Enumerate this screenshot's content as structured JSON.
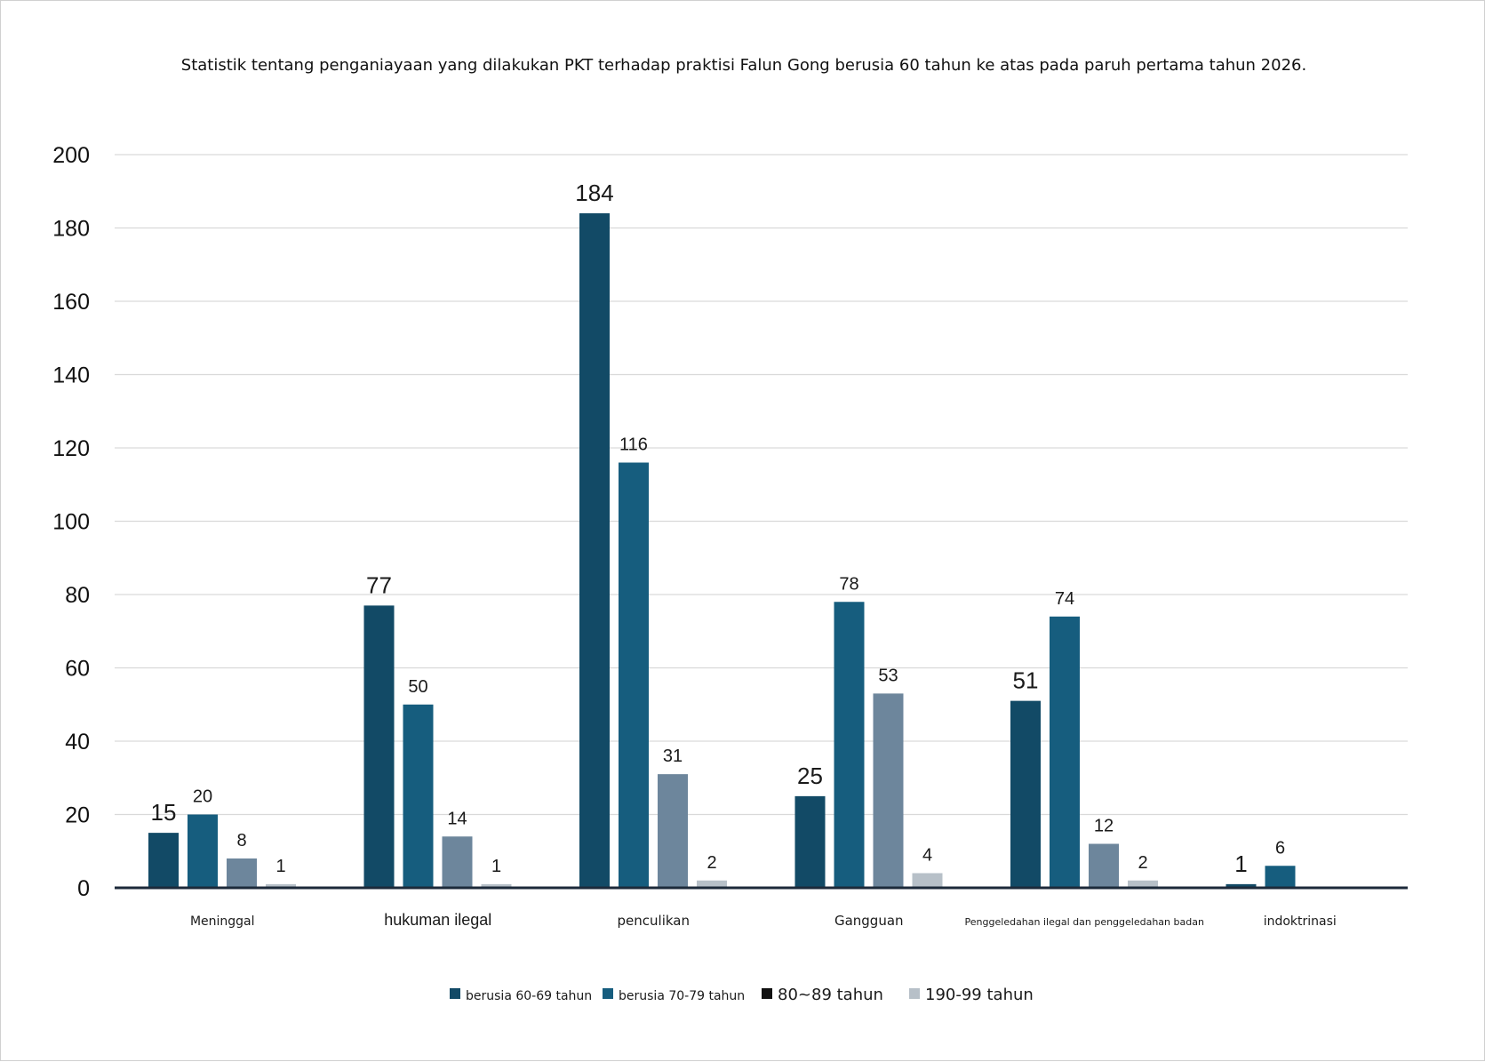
{
  "chart_data": {
    "type": "bar",
    "title": "Statistik tentang penganiayaan yang dilakukan PKT terhadap praktisi Falun Gong berusia 60 tahun ke atas pada paruh pertama tahun 2026.",
    "xlabel": "",
    "ylabel": "",
    "ylim": [
      0,
      200
    ],
    "yticks": [
      0,
      20,
      40,
      60,
      80,
      100,
      120,
      140,
      160,
      180,
      200
    ],
    "grid": true,
    "legend_position": "bottom",
    "categories": [
      "Meninggal",
      "hukuman ilegal",
      "penculikan",
      "Gangguan",
      "Penggeledahan ilegal dan penggeledahan badan",
      "indoktrinasi"
    ],
    "series": [
      {
        "name": "berusia 60-69 tahun",
        "color": "#124a66",
        "values": [
          15,
          77,
          184,
          25,
          51,
          1
        ]
      },
      {
        "name": "berusia 70-79 tahun",
        "color": "#165d7e",
        "values": [
          20,
          50,
          116,
          78,
          74,
          6
        ]
      },
      {
        "name": "80~89 tahun",
        "color": "#6d869c",
        "legend_color": "#111111",
        "values": [
          8,
          14,
          31,
          53,
          12,
          null
        ]
      },
      {
        "name": "190-99 tahun",
        "color": "#b7c0c8",
        "values": [
          1,
          1,
          2,
          4,
          2,
          null
        ]
      }
    ]
  }
}
